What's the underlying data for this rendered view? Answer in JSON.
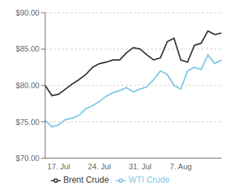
{
  "chart_data": {
    "type": "line",
    "categories": [
      null,
      null,
      "17. Jul",
      null,
      null,
      null,
      null,
      null,
      "24. Jul",
      null,
      null,
      null,
      null,
      null,
      "31. Jul",
      null,
      null,
      null,
      null,
      null,
      "7. Aug",
      null,
      null,
      null,
      null,
      null,
      null
    ],
    "series": [
      {
        "name": "WTI Crude",
        "color": "#7ec8e3",
        "values": [
          75.2,
          74.3,
          74.6,
          75.3,
          75.5,
          75.9,
          76.8,
          77.2,
          77.8,
          78.5,
          79.0,
          79.3,
          79.7,
          79.1,
          79.5,
          79.8,
          80.8,
          82.0,
          81.5,
          80.0,
          79.5,
          82.0,
          82.5,
          82.2,
          84.2,
          83.0,
          83.5
        ]
      },
      {
        "name": "Brent Crude",
        "color": "#3a3a3a",
        "values": [
          80.0,
          78.6,
          78.8,
          79.5,
          80.2,
          80.8,
          81.5,
          82.5,
          83.0,
          83.2,
          83.5,
          83.5,
          84.5,
          85.2,
          85.0,
          84.2,
          83.5,
          83.8,
          86.0,
          86.5,
          83.5,
          83.2,
          85.5,
          85.8,
          87.5,
          87.0,
          87.2
        ]
      }
    ],
    "ylim": [
      70.0,
      90.0
    ],
    "yticks": [
      {
        "value": 70.0,
        "label": "$70.00"
      },
      {
        "value": 75.0,
        "label": "$75.00"
      },
      {
        "value": 80.0,
        "label": "$80.00"
      },
      {
        "value": 85.0,
        "label": "$85.00"
      },
      {
        "value": 90.0,
        "label": "$90.00"
      }
    ],
    "grid": true,
    "legend": "bottom"
  }
}
